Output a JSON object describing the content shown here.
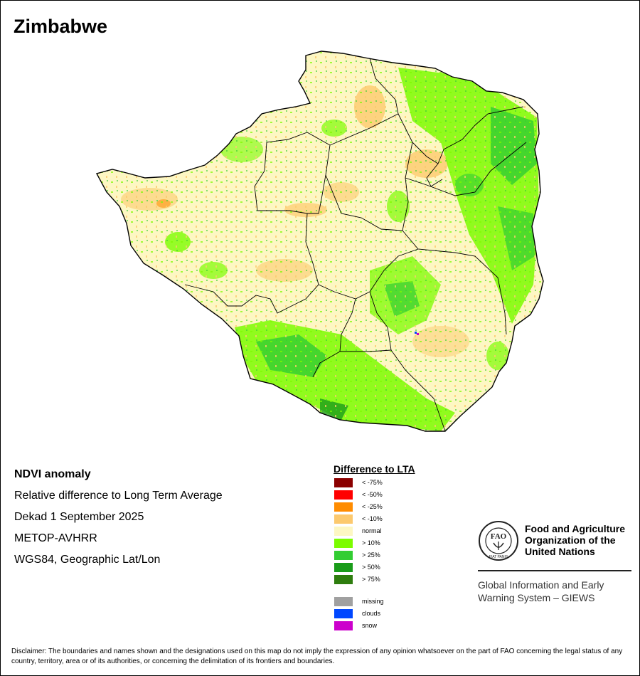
{
  "map": {
    "title": "Zimbabwe"
  },
  "info": {
    "product": "NDVI anomaly",
    "description": "Relative difference to Long Term Average",
    "period": "Dekad 1 September 2025",
    "sensor": "METOP-AVHRR",
    "projection": "WGS84, Geographic Lat/Lon"
  },
  "legend": {
    "title": "Difference to LTA",
    "items": [
      {
        "label": "< -75%",
        "color": "#8b0000"
      },
      {
        "label": "< -50%",
        "color": "#ff0000"
      },
      {
        "label": "< -25%",
        "color": "#ff8c00"
      },
      {
        "label": "< -10%",
        "color": "#fcc96e"
      },
      {
        "label": "normal",
        "color": "#fdf7c3"
      },
      {
        "label": "> 10%",
        "color": "#7cfc00"
      },
      {
        "label": "> 25%",
        "color": "#32cd32"
      },
      {
        "label": "> 50%",
        "color": "#1a9c1a"
      },
      {
        "label": "> 75%",
        "color": "#2e7d0e"
      }
    ],
    "extra": [
      {
        "label": "missing",
        "color": "#a0a0a0"
      },
      {
        "label": "clouds",
        "color": "#0047ff"
      },
      {
        "label": "snow",
        "color": "#cc00cc"
      }
    ]
  },
  "fao": {
    "org_line1": "Food and Agriculture",
    "org_line2": "Organization of the",
    "org_line3": "United Nations",
    "emblem_text": "FAO",
    "emblem_motto": "FIAT PANIS",
    "giews_line1": "Global Information and Early",
    "giews_line2": "Warning System – GIEWS"
  },
  "disclaimer": "Disclaimer: The boundaries and names shown and the designations used on this map do not imply the expression of any opinion whatsoever on the part of FAO concerning the legal status of any country, territory, area or of its authorities, or concerning the delimitation of its frontiers and boundaries."
}
